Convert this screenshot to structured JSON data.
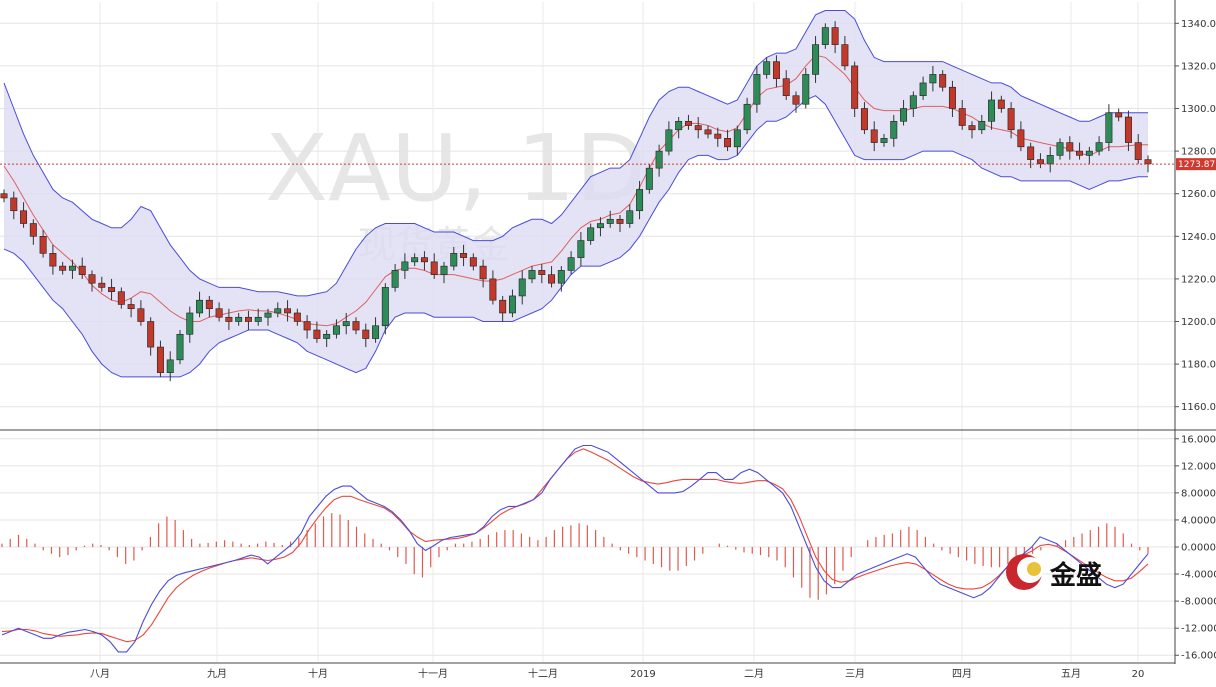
{
  "watermark": {
    "symbol": "XAU, 1D",
    "name": "现货黄金"
  },
  "logo": {
    "text": "金盛"
  },
  "chart_data": [
    {
      "type": "candlestick",
      "panel": "price",
      "indicators": [
        "Bollinger Bands",
        "Moving Average"
      ],
      "ylim": [
        1150,
        1350
      ],
      "y_ticks": [
        "1160.00",
        "1180.00",
        "1200.00",
        "1220.00",
        "1240.00",
        "1260.00",
        "1280.00",
        "1300.00",
        "1320.00",
        "1340.00"
      ],
      "x_ticks": [
        "八月",
        "九月",
        "十月",
        "十一月",
        "十二月",
        "2019",
        "二月",
        "三月",
        "四月",
        "五月",
        "20"
      ],
      "current_price": "1273.87",
      "grid": true,
      "series": [
        {
          "name": "",
          "kind": "close",
          "values": [
            1258,
            1252,
            1246,
            1240,
            1232,
            1226,
            1224,
            1226,
            1222,
            1218,
            1216,
            1214,
            1208,
            1206,
            1200,
            1188,
            1176,
            1182,
            1194,
            1204,
            1210,
            1206,
            1202,
            1200,
            1202,
            1200,
            1202,
            1204,
            1206,
            1204,
            1200,
            1196,
            1192,
            1194,
            1198,
            1200,
            1196,
            1192,
            1198,
            1216,
            1224,
            1228,
            1230,
            1228,
            1222,
            1226,
            1232,
            1230,
            1226,
            1220,
            1210,
            1204,
            1212,
            1220,
            1224,
            1222,
            1218,
            1224,
            1230,
            1238,
            1244,
            1246,
            1248,
            1246,
            1252,
            1262,
            1272,
            1280,
            1290,
            1294,
            1292,
            1290,
            1288,
            1286,
            1282,
            1290,
            1302,
            1316,
            1322,
            1314,
            1306,
            1302,
            1316,
            1330,
            1338,
            1330,
            1320,
            1300,
            1290,
            1284,
            1286,
            1294,
            1300,
            1306,
            1312,
            1316,
            1310,
            1300,
            1292,
            1290,
            1294,
            1304,
            1300,
            1290,
            1282,
            1276,
            1274,
            1278,
            1284,
            1280,
            1278,
            1280,
            1284,
            1298,
            1296,
            1284,
            1276,
            1274
          ],
          "series_color": "#333333"
        },
        {
          "name": "",
          "kind": "upper_band",
          "values": [
            1312,
            1300,
            1288,
            1278,
            1270,
            1262,
            1258,
            1256,
            1252,
            1248,
            1246,
            1244,
            1244,
            1248,
            1254,
            1252,
            1244,
            1236,
            1230,
            1224,
            1220,
            1218,
            1216,
            1216,
            1216,
            1215,
            1214,
            1214,
            1214,
            1213,
            1212,
            1212,
            1213,
            1214,
            1218,
            1226,
            1234,
            1240,
            1244,
            1246,
            1246,
            1246,
            1246,
            1244,
            1242,
            1242,
            1242,
            1240,
            1238,
            1238,
            1238,
            1240,
            1244,
            1246,
            1248,
            1248,
            1246,
            1250,
            1256,
            1262,
            1268,
            1270,
            1272,
            1272,
            1276,
            1286,
            1296,
            1304,
            1308,
            1310,
            1310,
            1308,
            1306,
            1304,
            1302,
            1304,
            1312,
            1320,
            1324,
            1326,
            1326,
            1328,
            1336,
            1344,
            1346,
            1346,
            1346,
            1342,
            1332,
            1324,
            1322,
            1322,
            1322,
            1322,
            1322,
            1322,
            1322,
            1320,
            1318,
            1316,
            1314,
            1312,
            1312,
            1310,
            1306,
            1304,
            1302,
            1300,
            1298,
            1296,
            1294,
            1294,
            1296,
            1298,
            1298,
            1298,
            1298,
            1298
          ],
          "series_color": "#4b4bdc"
        },
        {
          "name": "",
          "kind": "lower_band",
          "values": [
            1234,
            1232,
            1228,
            1222,
            1216,
            1210,
            1206,
            1200,
            1194,
            1186,
            1180,
            1176,
            1174,
            1174,
            1174,
            1174,
            1174,
            1174,
            1174,
            1176,
            1180,
            1186,
            1190,
            1192,
            1194,
            1196,
            1196,
            1196,
            1194,
            1192,
            1190,
            1186,
            1184,
            1182,
            1180,
            1178,
            1176,
            1178,
            1186,
            1196,
            1202,
            1204,
            1204,
            1204,
            1202,
            1202,
            1202,
            1202,
            1202,
            1200,
            1200,
            1200,
            1200,
            1202,
            1204,
            1206,
            1210,
            1216,
            1222,
            1226,
            1226,
            1226,
            1228,
            1230,
            1234,
            1240,
            1248,
            1256,
            1262,
            1270,
            1276,
            1278,
            1278,
            1276,
            1276,
            1278,
            1284,
            1290,
            1294,
            1294,
            1296,
            1300,
            1304,
            1306,
            1302,
            1294,
            1286,
            1278,
            1276,
            1276,
            1276,
            1276,
            1276,
            1278,
            1280,
            1280,
            1280,
            1280,
            1278,
            1276,
            1272,
            1270,
            1268,
            1268,
            1266,
            1266,
            1266,
            1266,
            1266,
            1266,
            1264,
            1262,
            1264,
            1266,
            1266,
            1267,
            1268,
            1268
          ],
          "series_color": "#4b4bdc"
        }
      ]
    },
    {
      "type": "histogram",
      "panel": "oscillator",
      "indicators": [
        "MACD"
      ],
      "ylim": [
        -17,
        17
      ],
      "y_ticks": [
        "16.0000",
        "12.0000",
        "8.0000",
        "4.0000",
        "0.0000",
        "-4.0000",
        "-8.0000",
        "-12.0000",
        "-16.0000"
      ],
      "grid": true,
      "series": [
        {
          "name": "",
          "kind": "macd",
          "values": [
            -13,
            -12.5,
            -12,
            -12.5,
            -13,
            -13.5,
            -13.5,
            -13,
            -12.6,
            -12.4,
            -12.2,
            -12.5,
            -13,
            -14,
            -15.5,
            -15.5,
            -14,
            -11,
            -8.5,
            -6.5,
            -5,
            -4.2,
            -3.8,
            -3.5,
            -3.2,
            -2.9,
            -2.6,
            -2.3,
            -2,
            -1.6,
            -1.2,
            -1.5,
            -2.5,
            -1.5,
            -0.5,
            0.5,
            2,
            4.5,
            6,
            7.5,
            8.5,
            9,
            9,
            8,
            7,
            6.5,
            6,
            5.2,
            4,
            2.5,
            0.5,
            -0.5,
            0.2,
            1,
            1.4,
            1.6,
            1.8,
            2,
            3,
            4.5,
            5.5,
            6,
            6,
            6.5,
            7,
            8,
            10,
            11.5,
            13,
            14.5,
            15,
            15,
            14.5,
            14,
            13,
            12,
            11,
            10,
            9,
            8,
            8,
            8,
            8.2,
            9,
            10,
            11,
            11,
            10,
            10,
            11,
            11.5,
            11,
            10,
            9,
            8,
            6,
            3,
            0,
            -3,
            -5,
            -6,
            -6,
            -5,
            -4,
            -3.5,
            -3,
            -2.5,
            -2,
            -1.5,
            -1,
            -1.5,
            -3,
            -4.5,
            -5.5,
            -6,
            -6.5,
            -7,
            -7.5,
            -7,
            -6,
            -4.5,
            -3,
            -2,
            -1,
            0,
            1.5,
            1,
            0.5,
            -0.5,
            -1.5,
            -2.5,
            -3.5,
            -4.5,
            -5.5,
            -6,
            -5.5,
            -4,
            -2.5,
            -1
          ],
          "series_color": "#4b4bdc"
        },
        {
          "name": "",
          "kind": "signal",
          "values": [
            -12.5,
            -12.4,
            -12.2,
            -12.2,
            -12.4,
            -12.8,
            -13,
            -13.2,
            -13.1,
            -13,
            -12.8,
            -12.7,
            -12.8,
            -13.2,
            -13.6,
            -14,
            -13.8,
            -13,
            -11.5,
            -9.5,
            -7.5,
            -6,
            -5,
            -4.2,
            -3.6,
            -3.1,
            -2.7,
            -2.3,
            -2,
            -1.8,
            -1.6,
            -1.8,
            -2,
            -1.8,
            -1.5,
            -0.8,
            0.6,
            2.6,
            4.3,
            5.8,
            7,
            7.5,
            7.5,
            7,
            6.6,
            6.2,
            5.8,
            5,
            3.8,
            2.4,
            1.5,
            0.8,
            1,
            1.1,
            1.2,
            1.3,
            1.6,
            2,
            2.8,
            3.8,
            4.8,
            5.5,
            6,
            6.4,
            7,
            8.5,
            10,
            11.5,
            13,
            14,
            14.5,
            14,
            13.4,
            12.8,
            12,
            11.2,
            10.4,
            9.8,
            9.5,
            9.3,
            9.5,
            9.8,
            10,
            10,
            10,
            10,
            10,
            9.7,
            9.5,
            9.4,
            9.6,
            9.8,
            9.8,
            9.3,
            8.6,
            7,
            4.5,
            1.5,
            -1.5,
            -3.5,
            -4.8,
            -5.2,
            -5,
            -4.5,
            -4,
            -3.6,
            -3.2,
            -2.8,
            -2.5,
            -2.3,
            -2.5,
            -3.2,
            -4,
            -4.8,
            -5.5,
            -6,
            -6.2,
            -6.2,
            -6,
            -5.3,
            -4.3,
            -3,
            -2,
            -1.2,
            -0.6,
            0.2,
            0.4,
            0.1,
            -0.6,
            -1.4,
            -2.2,
            -3,
            -3.8,
            -4.5,
            -5,
            -5,
            -4.6,
            -3.6,
            -2.5
          ],
          "series_color": "#e8483c"
        },
        {
          "name": "",
          "kind": "histogram",
          "values": [
            0.5,
            1.2,
            1.8,
            1.2,
            0.5,
            -0.5,
            -1,
            -1.5,
            -1.2,
            -0.5,
            0.2,
            0.5,
            0.3,
            -0.5,
            -1.5,
            -2.5,
            -2,
            -0.5,
            1.5,
            3.5,
            4.5,
            4,
            2.5,
            1.2,
            0.5,
            0.6,
            0.8,
            1,
            0.8,
            0.5,
            0.3,
            0.5,
            0.8,
            0.6,
            0.3,
            0.8,
            1.4,
            2.5,
            3.5,
            4.5,
            5,
            4.8,
            4,
            3,
            2,
            1.2,
            0.5,
            -0.5,
            -1.5,
            -2.5,
            -4,
            -4.5,
            -3,
            -1.5,
            -0.5,
            0.5,
            0.5,
            0.8,
            1.2,
            1.8,
            2.2,
            2.5,
            2.5,
            2,
            1.5,
            1,
            1.5,
            2.5,
            3,
            3.2,
            3.5,
            3.2,
            2.5,
            1.5,
            0.5,
            -0.5,
            -1,
            -1.5,
            -2,
            -2.5,
            -3,
            -3.5,
            -3.5,
            -2.8,
            -2,
            -1,
            0,
            0.5,
            0.2,
            -0.4,
            -0.8,
            -1,
            -1.2,
            -1.5,
            -2,
            -3,
            -4.5,
            -6,
            -7.5,
            -7.8,
            -7,
            -5.5,
            -3.5,
            -1.5,
            0,
            1,
            1.5,
            1.8,
            2,
            2.5,
            3,
            2.5,
            1.5,
            0.5,
            -0.5,
            -1,
            -1.5,
            -2,
            -2.5,
            -2.8,
            -3,
            -3,
            -2.5,
            -2,
            -1.5,
            -1,
            -0.5,
            0,
            0.5,
            1,
            1.5,
            2,
            2.5,
            3,
            3.5,
            3,
            2,
            0.5,
            -0.5,
            -1
          ]
        }
      ]
    }
  ]
}
